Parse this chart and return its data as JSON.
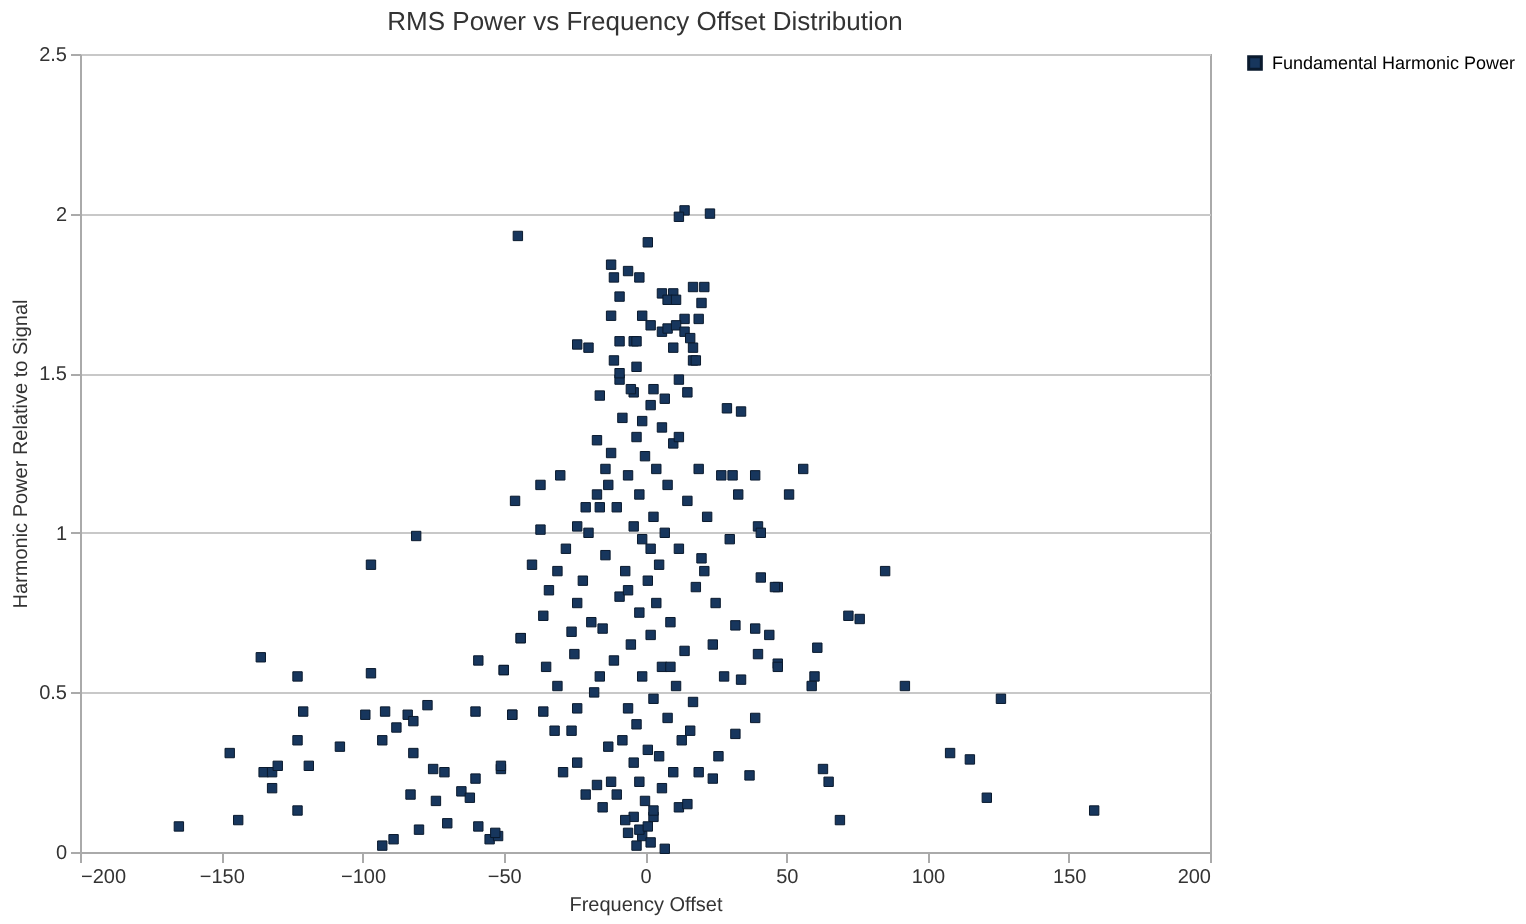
{
  "chart_data": {
    "type": "scatter",
    "title": "RMS Power vs Frequency Offset Distribution",
    "xlabel": "Frequency Offset",
    "ylabel": "Harmonic Power Relative to Signal",
    "xlim": [
      -200,
      200
    ],
    "xticks": [
      -200,
      -150,
      -100,
      -50,
      0,
      50,
      100,
      150,
      200
    ],
    "ylim": [
      0,
      2.5
    ],
    "yticks": [
      0,
      0.5,
      1,
      1.5,
      2,
      2.5
    ],
    "grid": "y",
    "legend": "right",
    "marker": "square",
    "series": [
      {
        "name": "Fundamental Harmonic Power",
        "color": "#17365d",
        "x": [
          -46,
          -81,
          -97,
          -136,
          -123,
          -97,
          -59,
          -50,
          -44,
          -121,
          -99,
          -92,
          -84,
          -82,
          -77,
          -88,
          -60,
          -47,
          -147,
          -123,
          -108,
          -93,
          -82,
          -135,
          -132,
          -130,
          -119,
          -132,
          -75,
          -71,
          -60,
          -51,
          -83,
          -74,
          -65,
          -62,
          -123,
          -165,
          -144,
          -80,
          -70,
          -59,
          -89,
          -93,
          -55,
          -52,
          56,
          51,
          85,
          47,
          72,
          76,
          61,
          47,
          60,
          59,
          92,
          126,
          108,
          115,
          63,
          65,
          121,
          159,
          69,
          14,
          12,
          23,
          -45,
          1,
          -12,
          -11,
          -6,
          -2,
          6,
          10,
          17,
          21,
          8,
          11,
          20,
          -9,
          -12,
          -1,
          14,
          19,
          2,
          6,
          8,
          11,
          14,
          -24,
          -20,
          -9,
          -4,
          10,
          16,
          17,
          -11,
          17,
          18,
          -3,
          -9,
          12,
          -4,
          3,
          15,
          -16,
          29,
          34,
          -30,
          -37,
          39,
          27,
          31,
          33,
          -17,
          -14,
          -21,
          -16,
          -37,
          -24,
          40,
          41,
          -40,
          -31,
          41,
          46,
          -34,
          -36,
          -44,
          -26,
          -24,
          32,
          39,
          44,
          -50,
          -35,
          -31,
          40,
          47,
          34,
          -47,
          -36,
          -32,
          -26,
          -24,
          39,
          32,
          -51,
          -29,
          -21,
          -17,
          -15,
          -10,
          19,
          24,
          37,
          12,
          -4,
          -6,
          -1,
          7,
          -53,
          3,
          -2,
          1,
          -5,
          2,
          -8,
          6,
          -3,
          10,
          -12,
          0,
          4,
          -6,
          8,
          -2,
          15,
          -10,
          3,
          -4,
          7,
          -1,
          12,
          -14,
          5,
          -7,
          1,
          18,
          -9,
          4,
          -2,
          9,
          -15,
          2,
          -5,
          14,
          -11,
          6,
          -1,
          11,
          -18,
          3,
          -6,
          8,
          -3,
          16,
          -8,
          1,
          5,
          -4,
          10,
          -2,
          6,
          0,
          3,
          -7,
          2,
          -3,
          20,
          22,
          -20,
          -22,
          25,
          -25,
          28,
          -16,
          17,
          -13,
          13,
          24,
          -19,
          21,
          -17,
          19,
          -1,
          7,
          -9,
          12,
          -13,
          30,
          -28,
          26,
          -24,
          15,
          -12,
          9,
          -6,
          2,
          -3
        ],
        "values": [
          1.1,
          0.99,
          0.9,
          0.61,
          0.55,
          0.56,
          0.6,
          0.57,
          0.67,
          0.44,
          0.43,
          0.44,
          0.43,
          0.41,
          0.46,
          0.39,
          0.44,
          0.43,
          0.31,
          0.35,
          0.33,
          0.35,
          0.31,
          0.25,
          0.25,
          0.27,
          0.27,
          0.2,
          0.26,
          0.25,
          0.23,
          0.26,
          0.18,
          0.16,
          0.19,
          0.17,
          0.13,
          0.08,
          0.1,
          0.07,
          0.09,
          0.08,
          0.04,
          0.02,
          0.04,
          0.05,
          1.2,
          1.12,
          0.88,
          0.83,
          0.74,
          0.73,
          0.64,
          0.59,
          0.55,
          0.52,
          0.52,
          0.48,
          0.31,
          0.29,
          0.26,
          0.22,
          0.17,
          0.13,
          0.1,
          2.01,
          1.99,
          2.0,
          1.93,
          1.91,
          1.84,
          1.8,
          1.82,
          1.8,
          1.75,
          1.75,
          1.77,
          1.77,
          1.73,
          1.73,
          1.72,
          1.74,
          1.68,
          1.68,
          1.67,
          1.67,
          1.65,
          1.63,
          1.64,
          1.65,
          1.63,
          1.59,
          1.58,
          1.6,
          1.6,
          1.58,
          1.61,
          1.58,
          1.54,
          1.54,
          1.54,
          1.52,
          1.48,
          1.48,
          1.44,
          1.45,
          1.44,
          1.43,
          1.39,
          1.38,
          1.18,
          1.15,
          1.18,
          1.18,
          1.18,
          1.12,
          1.29,
          1.2,
          1.08,
          1.08,
          1.01,
          1.02,
          1.02,
          1.0,
          0.9,
          0.88,
          0.86,
          0.83,
          0.82,
          0.74,
          0.67,
          0.69,
          0.78,
          0.71,
          0.7,
          0.68,
          0.57,
          0.58,
          0.52,
          0.62,
          0.58,
          0.54,
          0.43,
          0.44,
          0.38,
          0.38,
          0.45,
          0.42,
          0.37,
          0.27,
          0.25,
          0.18,
          0.21,
          0.14,
          0.18,
          0.25,
          0.23,
          0.24,
          0.14,
          0.11,
          0.06,
          0.05,
          0.01,
          0.06,
          0.11,
          0.07,
          0.08,
          1.45,
          1.4,
          1.36,
          1.33,
          1.3,
          1.28,
          1.25,
          1.24,
          1.2,
          1.18,
          1.15,
          1.12,
          1.1,
          1.08,
          1.05,
          1.02,
          1.0,
          0.98,
          0.95,
          0.93,
          0.9,
          0.88,
          0.85,
          0.83,
          0.8,
          0.78,
          0.75,
          0.72,
          0.7,
          0.68,
          0.65,
          0.63,
          0.6,
          0.58,
          0.55,
          0.52,
          0.5,
          0.48,
          0.45,
          0.42,
          0.4,
          0.38,
          0.35,
          0.32,
          0.3,
          0.28,
          0.25,
          0.22,
          0.2,
          0.16,
          0.13,
          0.1,
          0.03,
          0.02,
          0.92,
          1.05,
          1.0,
          0.85,
          0.78,
          0.62,
          0.55,
          0.55,
          0.47,
          0.33,
          0.35,
          0.65,
          0.72,
          0.88,
          1.12,
          1.2,
          1.35,
          1.42,
          1.5,
          1.3,
          1.15,
          0.98,
          0.95,
          0.3,
          0.28,
          0.15,
          0.22,
          0.58,
          0.82,
          0.95,
          1.6
        ]
      }
    ]
  }
}
